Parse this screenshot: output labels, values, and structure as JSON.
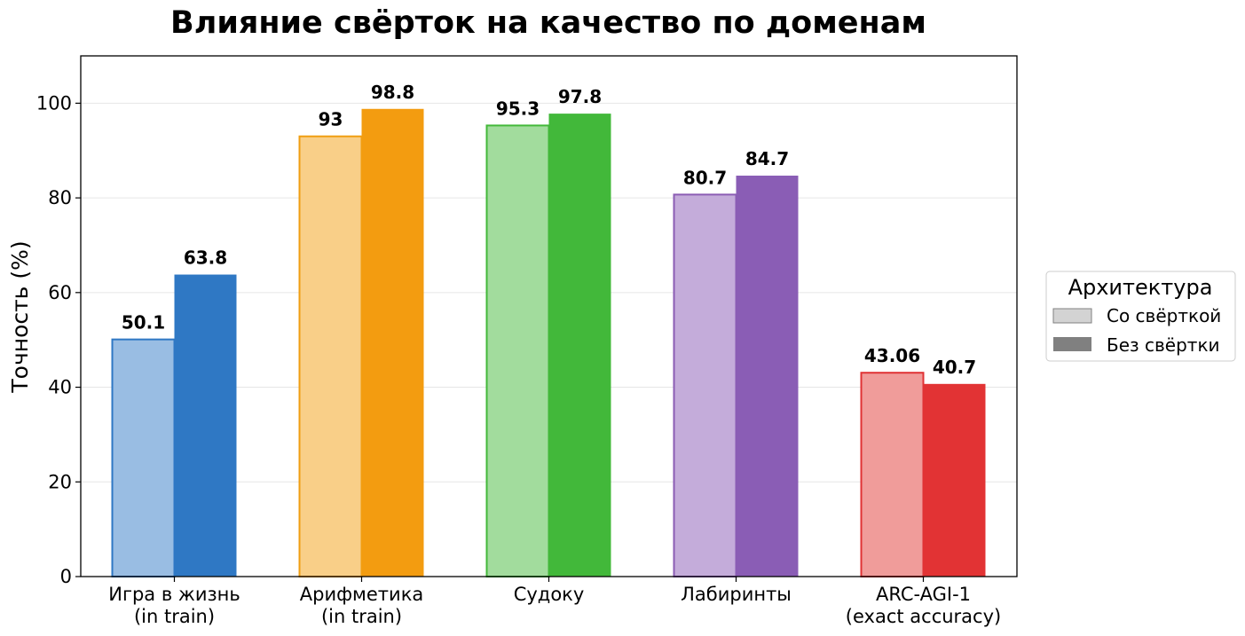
{
  "chart_data": {
    "type": "bar",
    "title": "Влияние свёрток на качество по доменам",
    "xlabel": "",
    "ylabel": "Точность (%)",
    "ylim": [
      0,
      110
    ],
    "yticks": [
      0,
      20,
      40,
      60,
      80,
      100
    ],
    "grid": true,
    "legend_position": "right",
    "legend": {
      "title": "Архитектура",
      "entries": [
        {
          "label": "Со свёрткой",
          "color": "#d3d3d3"
        },
        {
          "label": "Без свёртки",
          "color": "#808080"
        }
      ]
    },
    "categories": [
      {
        "lines": [
          "Игра в жизнь",
          "(in train)"
        ]
      },
      {
        "lines": [
          "Арифметика",
          "(in train)"
        ]
      },
      {
        "lines": [
          "Судоку"
        ]
      },
      {
        "lines": [
          "Лабиринты"
        ]
      },
      {
        "lines": [
          "ARC-AGI-1",
          "(exact accuracy)"
        ]
      }
    ],
    "series": [
      {
        "values": [
          50.1,
          93,
          95.3,
          80.7,
          43.06
        ],
        "labels": [
          "50.1",
          "93",
          "95.3",
          "80.7",
          "43.06"
        ],
        "style": "light"
      },
      {
        "values": [
          63.8,
          98.8,
          97.8,
          84.7,
          40.7
        ],
        "labels": [
          "63.8",
          "98.8",
          "97.8",
          "84.7",
          "40.7"
        ],
        "style": "dark"
      }
    ],
    "colors": {
      "light": [
        "#99bde3",
        "#f9cf88",
        "#a2dc9d",
        "#c4acda",
        "#f09c9a"
      ],
      "light_edge": [
        "#2f78c4",
        "#f09e12",
        "#43b83a",
        "#8b5db4",
        "#e03234"
      ],
      "dark": [
        "#2f78c4",
        "#f39c10",
        "#42b83a",
        "#8a5db5",
        "#e23334"
      ]
    }
  }
}
